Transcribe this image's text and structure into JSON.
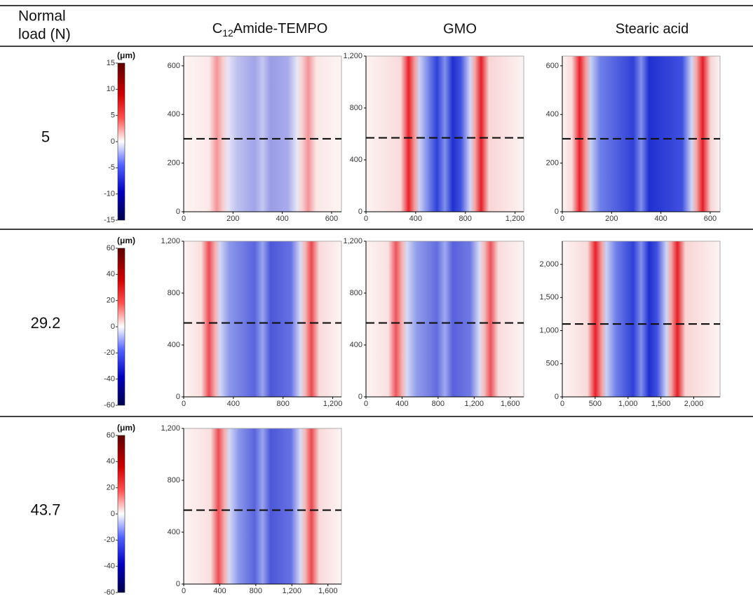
{
  "header": {
    "load": [
      "Normal",
      "load (N)"
    ],
    "columns": [
      {
        "prefix": "C",
        "subscript": "12",
        "suffix": "Amide-TEMPO"
      },
      {
        "prefix": "GMO"
      },
      {
        "prefix": "Stearic acid"
      }
    ]
  },
  "rows": [
    {
      "load": "5",
      "colorbar": {
        "unit": "(μm)",
        "lim": [
          -15,
          15
        ],
        "ticks": [
          15,
          10,
          5,
          0,
          -5,
          -10,
          -15
        ]
      },
      "panels": [
        {
          "xlim": [
            0,
            640
          ],
          "ylim": [
            0,
            640
          ],
          "xticks": [
            0,
            200,
            400,
            600
          ],
          "yticks": [
            0,
            200,
            400,
            600
          ],
          "profile_y": 300
        },
        {
          "xlim": [
            0,
            1270
          ],
          "ylim": [
            0,
            1200
          ],
          "xticks": [
            0,
            400,
            800,
            {
              "value": 1200,
              "label": "1,200"
            }
          ],
          "yticks": [
            0,
            400,
            800,
            {
              "value": 1200,
              "label": "1,200"
            }
          ],
          "profile_y": 570
        },
        {
          "xlim": [
            0,
            640
          ],
          "ylim": [
            0,
            640
          ],
          "xticks": [
            0,
            200,
            400,
            600
          ],
          "yticks": [
            0,
            200,
            400,
            600
          ],
          "profile_y": 300
        }
      ]
    },
    {
      "load": "29.2",
      "colorbar": {
        "unit": "(μm)",
        "lim": [
          -60,
          60
        ],
        "ticks": [
          60,
          40,
          20,
          0,
          -20,
          -40,
          -60
        ]
      },
      "panels": [
        {
          "xlim": [
            0,
            1270
          ],
          "ylim": [
            0,
            1200
          ],
          "xticks": [
            0,
            400,
            800,
            {
              "value": 1200,
              "label": "1,200"
            }
          ],
          "yticks": [
            0,
            400,
            800,
            {
              "value": 1200,
              "label": "1,200"
            }
          ],
          "profile_y": 570
        },
        {
          "xlim": [
            0,
            1750
          ],
          "ylim": [
            0,
            1200
          ],
          "xticks": [
            0,
            400,
            800,
            {
              "value": 1200,
              "label": "1,200"
            },
            {
              "value": 1600,
              "label": "1,600"
            }
          ],
          "yticks": [
            0,
            400,
            800,
            {
              "value": 1200,
              "label": "1,200"
            }
          ],
          "profile_y": 570
        },
        {
          "xlim": [
            0,
            2400
          ],
          "ylim": [
            0,
            2350
          ],
          "xticks": [
            0,
            500,
            {
              "value": 1000,
              "label": "1,000"
            },
            {
              "value": 1500,
              "label": "1,500"
            },
            {
              "value": 2000,
              "label": "2,000"
            }
          ],
          "yticks": [
            0,
            500,
            {
              "value": 1000,
              "label": "1,000"
            },
            {
              "value": 1500,
              "label": "1,500"
            },
            {
              "value": 2000,
              "label": "2,000"
            }
          ],
          "profile_y": 1100
        }
      ]
    },
    {
      "load": "43.7",
      "colorbar": {
        "unit": "(μm)",
        "lim": [
          -60,
          60
        ],
        "ticks": [
          60,
          40,
          20,
          0,
          -20,
          -40,
          -60
        ]
      },
      "panels": [
        {
          "xlim": [
            0,
            1750
          ],
          "ylim": [
            0,
            1200
          ],
          "xticks": [
            0,
            400,
            800,
            {
              "value": 1200,
              "label": "1,200"
            },
            {
              "value": 1600,
              "label": "1,600"
            }
          ],
          "yticks": [
            0,
            400,
            800,
            {
              "value": 1200,
              "label": "1,200"
            }
          ],
          "profile_y": 570
        }
      ]
    }
  ]
}
